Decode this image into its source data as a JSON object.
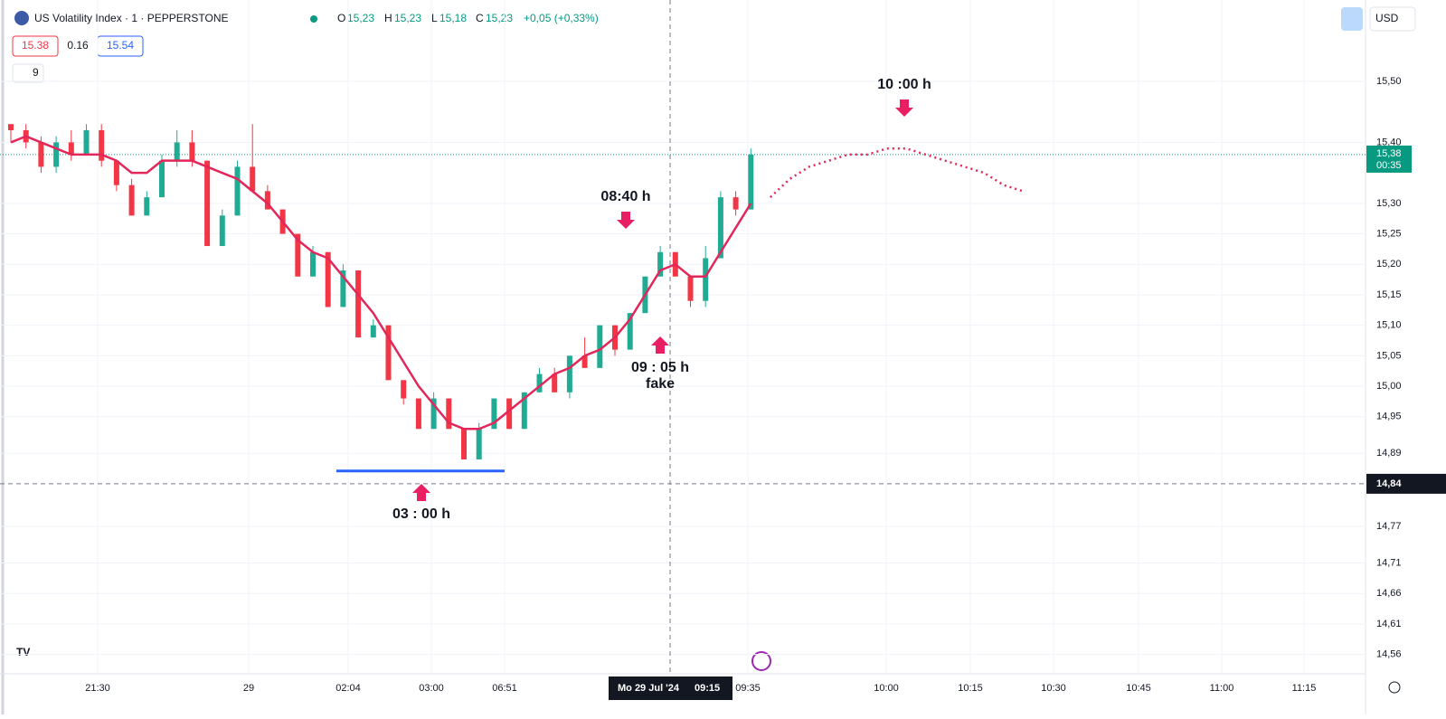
{
  "header": {
    "symbol": "US Volatility Index · 1 · PEPPERSTONE",
    "o_label": "O",
    "o": "15,23",
    "h_label": "H",
    "h": "15,23",
    "l_label": "L",
    "l": "15,18",
    "c_label": "C",
    "c": "15,23",
    "change": "+0,05 (+0,33%)",
    "sell": "15.38",
    "spread": "0.16",
    "buy": "15.54",
    "indicator": "9",
    "currency": "USD"
  },
  "price_axis": {
    "ylim": [
      14.5283,
      15.6336
    ],
    "ticks": [
      {
        "value": 15.5,
        "label": "15,50"
      },
      {
        "value": 15.4,
        "label": "15,40"
      },
      {
        "value": 15.3,
        "label": "15,30"
      },
      {
        "value": 15.25,
        "label": "15,25"
      },
      {
        "value": 15.2,
        "label": "15,20"
      },
      {
        "value": 15.15,
        "label": "15,15"
      },
      {
        "value": 15.1,
        "label": "15,10"
      },
      {
        "value": 15.05,
        "label": "15,05"
      },
      {
        "value": 15.0,
        "label": "15,00"
      },
      {
        "value": 14.95,
        "label": "14,95"
      },
      {
        "value": 14.89,
        "label": "14,89"
      },
      {
        "value": 14.77,
        "label": "14,77"
      },
      {
        "value": 14.71,
        "label": "14,71"
      },
      {
        "value": 14.66,
        "label": "14,66"
      },
      {
        "value": 14.61,
        "label": "14,61"
      },
      {
        "value": 14.56,
        "label": "14,56"
      }
    ],
    "last_price": {
      "value": 15.38,
      "label": "15,38",
      "countdown": "00:35"
    },
    "crosshair": {
      "value": 14.84,
      "label": "14,84"
    }
  },
  "time_axis": {
    "labels": [
      "21:30",
      "29",
      "02:04",
      "03:00",
      "06:51",
      "09:35",
      "10:00",
      "10:15",
      "10:30",
      "10:45",
      "11:00",
      "11:15"
    ],
    "crosshair": "Mo 29 Jul '24",
    "crosshair_time": "09:15"
  },
  "candles": [
    [
      15.43,
      15.43,
      15.4,
      15.42
    ],
    [
      15.42,
      15.43,
      15.39,
      15.4
    ],
    [
      15.4,
      15.41,
      15.35,
      15.36
    ],
    [
      15.36,
      15.41,
      15.35,
      15.4
    ],
    [
      15.4,
      15.42,
      15.37,
      15.38
    ],
    [
      15.38,
      15.43,
      15.38,
      15.42
    ],
    [
      15.42,
      15.43,
      15.36,
      15.37
    ],
    [
      15.37,
      15.37,
      15.32,
      15.33
    ],
    [
      15.33,
      15.34,
      15.28,
      15.28
    ],
    [
      15.28,
      15.32,
      15.28,
      15.31
    ],
    [
      15.31,
      15.38,
      15.31,
      15.37
    ],
    [
      15.37,
      15.42,
      15.36,
      15.4
    ],
    [
      15.4,
      15.42,
      15.36,
      15.37
    ],
    [
      15.37,
      15.37,
      15.23,
      15.23
    ],
    [
      15.23,
      15.29,
      15.23,
      15.28
    ],
    [
      15.28,
      15.37,
      15.28,
      15.36
    ],
    [
      15.36,
      15.43,
      15.32,
      15.32
    ],
    [
      15.32,
      15.33,
      15.29,
      15.29
    ],
    [
      15.29,
      15.29,
      15.25,
      15.25
    ],
    [
      15.25,
      15.25,
      15.18,
      15.18
    ],
    [
      15.18,
      15.23,
      15.18,
      15.22
    ],
    [
      15.22,
      15.22,
      15.13,
      15.13
    ],
    [
      15.13,
      15.2,
      15.13,
      15.19
    ],
    [
      15.19,
      15.19,
      15.08,
      15.08
    ],
    [
      15.08,
      15.11,
      15.08,
      15.1
    ],
    [
      15.1,
      15.1,
      15.01,
      15.01
    ],
    [
      15.01,
      15.01,
      14.97,
      14.98
    ],
    [
      14.98,
      14.98,
      14.93,
      14.93
    ],
    [
      14.93,
      14.99,
      14.93,
      14.98
    ],
    [
      14.98,
      14.98,
      14.93,
      14.93
    ],
    [
      14.93,
      14.93,
      14.88,
      14.88
    ],
    [
      14.88,
      14.94,
      14.88,
      14.93
    ],
    [
      14.93,
      14.98,
      14.93,
      14.98
    ],
    [
      14.98,
      14.98,
      14.93,
      14.93
    ],
    [
      14.93,
      14.99,
      14.93,
      14.99
    ],
    [
      14.99,
      15.03,
      14.99,
      15.02
    ],
    [
      15.02,
      15.03,
      14.99,
      14.99
    ],
    [
      14.99,
      15.05,
      14.98,
      15.05
    ],
    [
      15.05,
      15.08,
      15.03,
      15.03
    ],
    [
      15.03,
      15.1,
      15.03,
      15.1
    ],
    [
      15.1,
      15.1,
      15.05,
      15.06
    ],
    [
      15.06,
      15.12,
      15.06,
      15.12
    ],
    [
      15.12,
      15.18,
      15.12,
      15.18
    ],
    [
      15.18,
      15.23,
      15.18,
      15.22
    ],
    [
      15.22,
      15.22,
      15.18,
      15.18
    ],
    [
      15.18,
      15.18,
      15.13,
      15.14
    ],
    [
      15.14,
      15.23,
      15.13,
      15.21
    ],
    [
      15.21,
      15.32,
      15.21,
      15.31
    ],
    [
      15.31,
      15.32,
      15.28,
      15.29
    ],
    [
      15.29,
      15.39,
      15.29,
      15.38
    ]
  ],
  "ma": [
    15.4,
    15.41,
    15.4,
    15.39,
    15.38,
    15.38,
    15.38,
    15.37,
    15.35,
    15.35,
    15.37,
    15.37,
    15.37,
    15.36,
    15.35,
    15.34,
    15.32,
    15.3,
    15.27,
    15.24,
    15.22,
    15.21,
    15.18,
    15.15,
    15.12,
    15.08,
    15.04,
    15.0,
    14.97,
    14.94,
    14.93,
    14.93,
    14.94,
    14.96,
    14.98,
    15.0,
    15.02,
    15.03,
    15.05,
    15.06,
    15.08,
    15.11,
    15.15,
    15.19,
    15.2,
    15.18,
    15.18,
    15.22,
    15.26,
    15.3
  ],
  "projection": [
    15.31,
    15.34,
    15.36,
    15.37,
    15.38,
    15.38,
    15.39,
    15.39,
    15.38,
    15.37,
    15.36,
    15.35,
    15.33,
    15.32
  ],
  "support_level": 14.861,
  "annotations": {
    "a1000": "10 :00 h",
    "a0840": "08:40 h",
    "a0905": "09 : 05 h",
    "fake": "fake",
    "a0300": "03 : 00 h"
  }
}
